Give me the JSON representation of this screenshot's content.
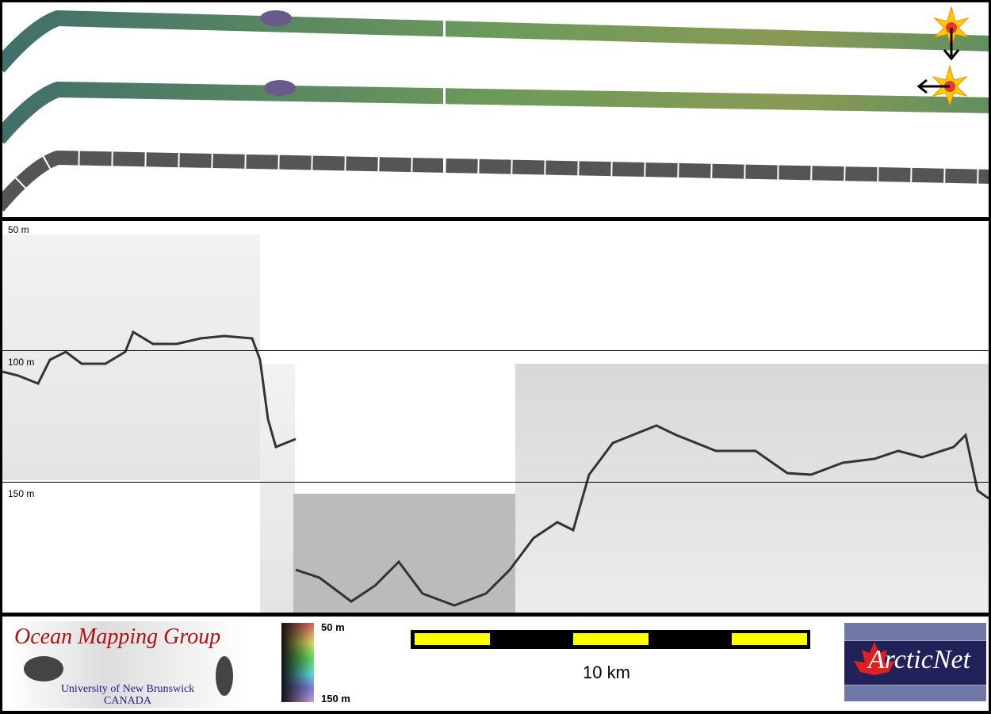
{
  "profile": {
    "depth_labels": [
      "50 m",
      "100 m",
      "150 m"
    ]
  },
  "legend": {
    "top_label": "50 m",
    "bottom_label": "150 m"
  },
  "scalebar": {
    "label": "10 km",
    "colors": {
      "fill": "#000000",
      "segment": "#ffff00"
    }
  },
  "logos": {
    "omg": {
      "title": "Ocean Mapping Group",
      "line1": "University of New Brunswick",
      "line2": "CANADA"
    },
    "arcticnet": {
      "title": "ArcticNet"
    }
  },
  "colors": {
    "swath_green": "#5f8a6a",
    "swath_gray": "#6a6a6a",
    "omg_red": "#b01010",
    "omg_blue": "#1a1a8a",
    "arcticnet_navy": "#22225a"
  }
}
